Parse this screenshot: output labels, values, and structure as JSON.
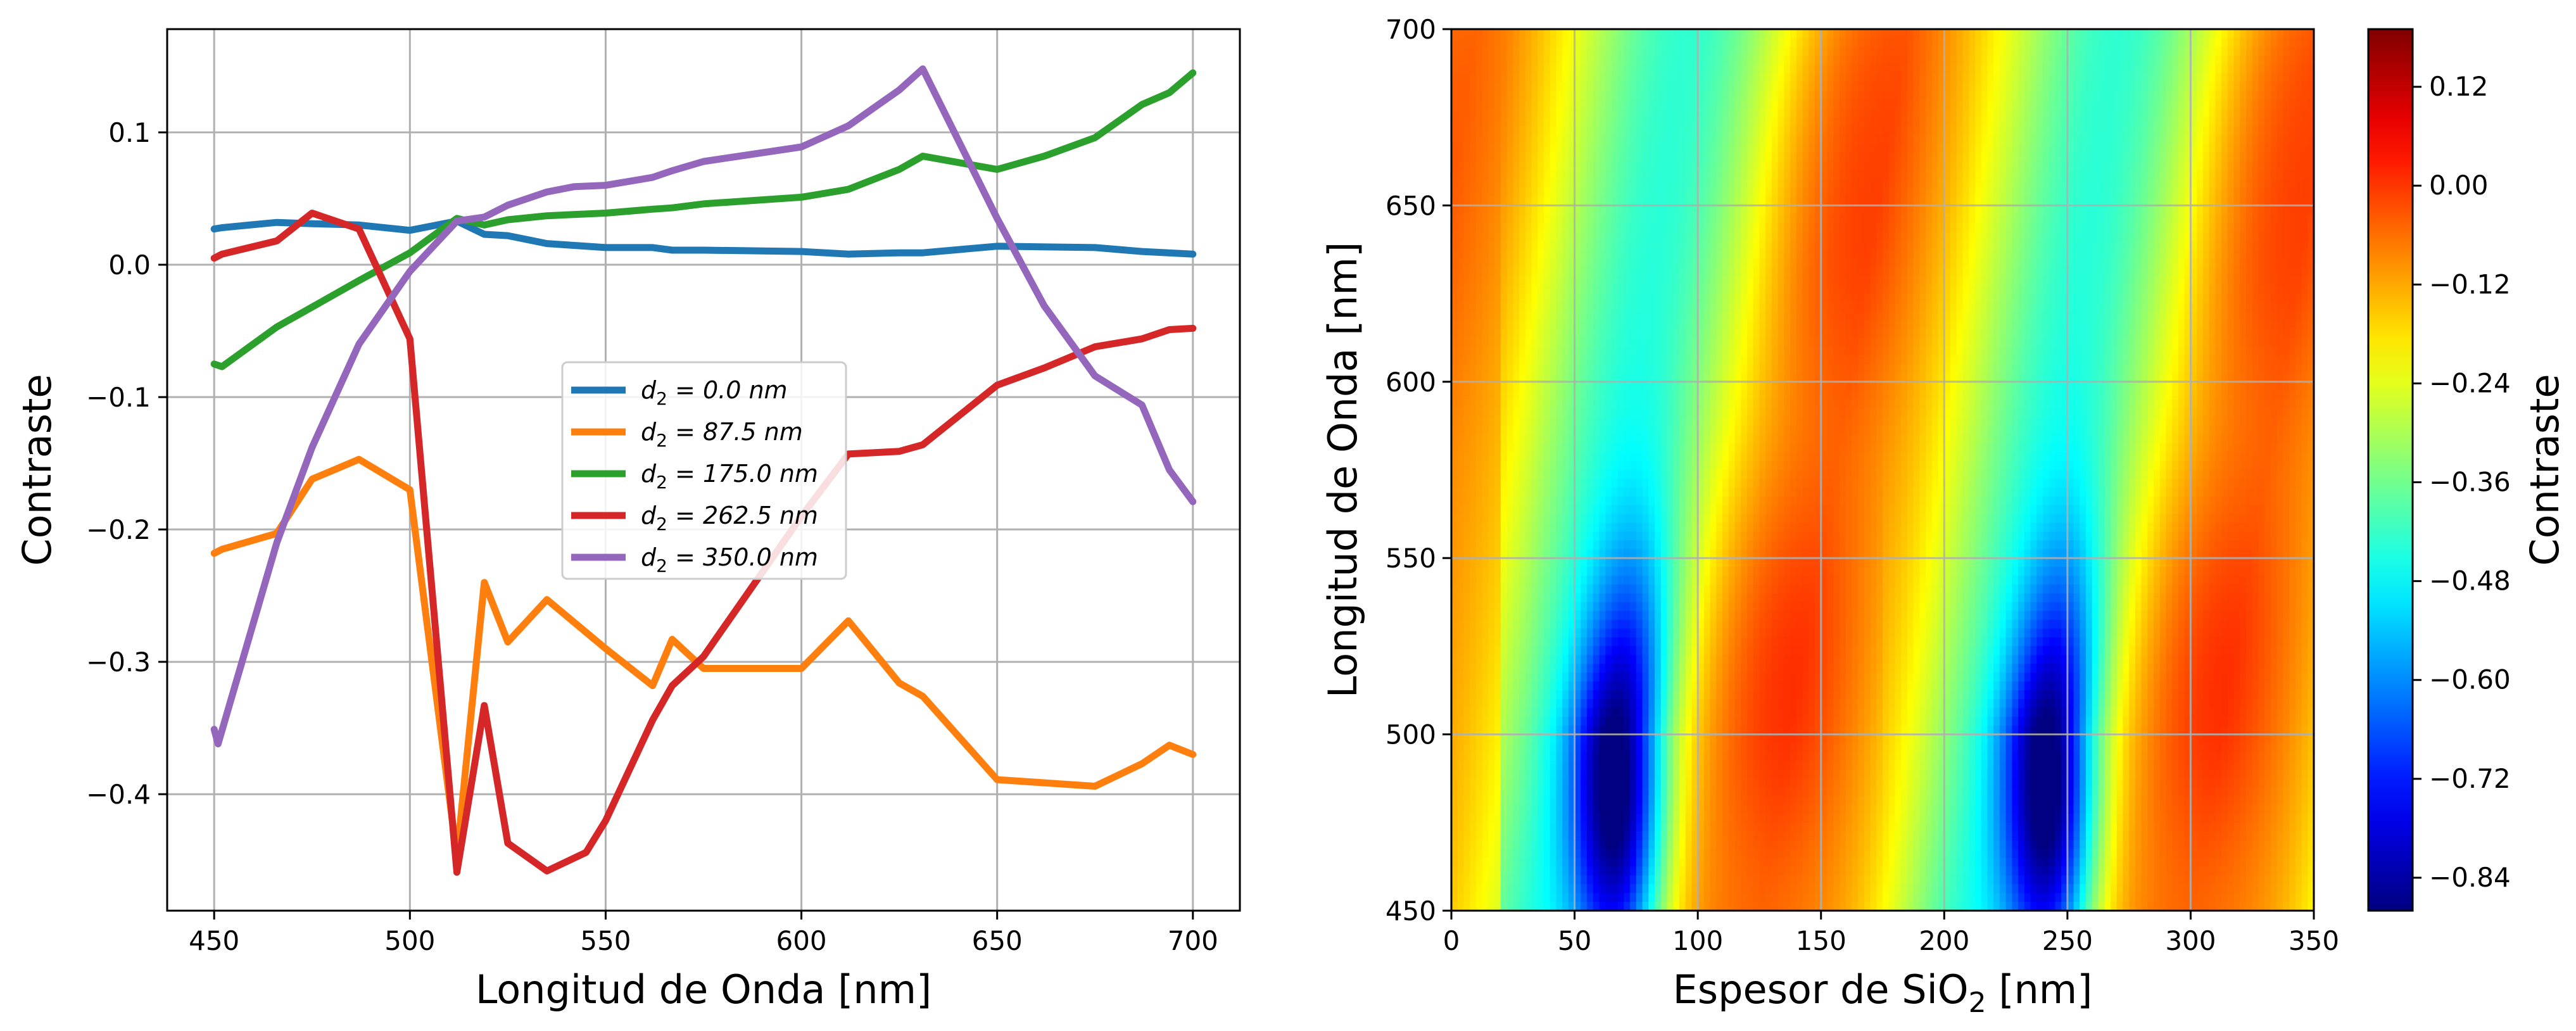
{
  "chart_data": [
    {
      "type": "line",
      "xlabel": "Longitud de Onda [nm]",
      "ylabel": "Contraste",
      "xlim": [
        438,
        712
      ],
      "ylim": [
        -0.488,
        0.178
      ],
      "xticks": [
        450,
        500,
        550,
        600,
        650,
        700
      ],
      "yticks": [
        0.1,
        0.0,
        -0.1,
        -0.2,
        -0.3,
        -0.4
      ],
      "xtick_labels": [
        "450",
        "500",
        "550",
        "600",
        "650",
        "700"
      ],
      "ytick_labels": [
        "0.1",
        "0.0",
        "−0.1",
        "−0.2",
        "−0.3",
        "−0.4"
      ],
      "grid": true,
      "legend_position": "center",
      "series": [
        {
          "name": "d2 = 0.0 nm",
          "label_prefix": "d",
          "label_sub": "2",
          "label_value": " = 0.0 nm",
          "color": "#1f77b4",
          "points": [
            [
              450,
              0.027
            ],
            [
              452,
              0.028
            ],
            [
              466,
              0.032
            ],
            [
              475,
              0.031
            ],
            [
              487,
              0.03
            ],
            [
              500,
              0.026
            ],
            [
              512,
              0.033
            ],
            [
              519,
              0.023
            ],
            [
              525,
              0.022
            ],
            [
              535,
              0.016
            ],
            [
              550,
              0.013
            ],
            [
              562,
              0.013
            ],
            [
              567,
              0.011
            ],
            [
              575,
              0.011
            ],
            [
              600,
              0.01
            ],
            [
              612,
              0.008
            ],
            [
              625,
              0.009
            ],
            [
              631,
              0.009
            ],
            [
              650,
              0.014
            ],
            [
              675,
              0.013
            ],
            [
              687,
              0.01
            ],
            [
              700,
              0.008
            ]
          ]
        },
        {
          "name": "d2 = 87.5 nm",
          "label_prefix": "d",
          "label_sub": "2",
          "label_value": " = 87.5 nm",
          "color": "#ff7f0e",
          "points": [
            [
              450,
              -0.218
            ],
            [
              452,
              -0.215
            ],
            [
              466,
              -0.203
            ],
            [
              475,
              -0.162
            ],
            [
              487,
              -0.147
            ],
            [
              500,
              -0.17
            ],
            [
              512,
              -0.447
            ],
            [
              519,
              -0.24
            ],
            [
              525,
              -0.285
            ],
            [
              535,
              -0.253
            ],
            [
              550,
              -0.29
            ],
            [
              562,
              -0.318
            ],
            [
              567,
              -0.283
            ],
            [
              575,
              -0.305
            ],
            [
              600,
              -0.305
            ],
            [
              612,
              -0.269
            ],
            [
              625,
              -0.316
            ],
            [
              631,
              -0.326
            ],
            [
              650,
              -0.389
            ],
            [
              675,
              -0.394
            ],
            [
              687,
              -0.377
            ],
            [
              694,
              -0.363
            ],
            [
              700,
              -0.37
            ]
          ]
        },
        {
          "name": "d2 = 175.0 nm",
          "label_prefix": "d",
          "label_sub": "2",
          "label_value": " = 175.0 nm",
          "color": "#2ca02c",
          "points": [
            [
              450,
              -0.075
            ],
            [
              452,
              -0.077
            ],
            [
              466,
              -0.047
            ],
            [
              475,
              -0.032
            ],
            [
              487,
              -0.012
            ],
            [
              500,
              0.009
            ],
            [
              512,
              0.035
            ],
            [
              519,
              0.03
            ],
            [
              525,
              0.034
            ],
            [
              535,
              0.037
            ],
            [
              550,
              0.039
            ],
            [
              562,
              0.042
            ],
            [
              567,
              0.043
            ],
            [
              575,
              0.046
            ],
            [
              600,
              0.051
            ],
            [
              612,
              0.057
            ],
            [
              625,
              0.072
            ],
            [
              631,
              0.082
            ],
            [
              650,
              0.072
            ],
            [
              662,
              0.082
            ],
            [
              675,
              0.096
            ],
            [
              687,
              0.121
            ],
            [
              694,
              0.13
            ],
            [
              700,
              0.145
            ]
          ]
        },
        {
          "name": "d2 = 262.5 nm",
          "label_prefix": "d",
          "label_sub": "2",
          "label_value": " = 262.5 nm",
          "color": "#d62728",
          "points": [
            [
              450,
              0.005
            ],
            [
              452,
              0.008
            ],
            [
              466,
              0.018
            ],
            [
              475,
              0.039
            ],
            [
              487,
              0.027
            ],
            [
              500,
              -0.056
            ],
            [
              512,
              -0.459
            ],
            [
              519,
              -0.333
            ],
            [
              525,
              -0.437
            ],
            [
              535,
              -0.458
            ],
            [
              545,
              -0.444
            ],
            [
              550,
              -0.42
            ],
            [
              562,
              -0.344
            ],
            [
              567,
              -0.318
            ],
            [
              575,
              -0.296
            ],
            [
              600,
              -0.19
            ],
            [
              612,
              -0.143
            ],
            [
              625,
              -0.141
            ],
            [
              631,
              -0.136
            ],
            [
              650,
              -0.091
            ],
            [
              662,
              -0.078
            ],
            [
              675,
              -0.062
            ],
            [
              687,
              -0.056
            ],
            [
              694,
              -0.049
            ],
            [
              700,
              -0.048
            ]
          ]
        },
        {
          "name": "d2 = 350.0 nm",
          "label_prefix": "d",
          "label_sub": "2",
          "label_value": " = 350.0 nm",
          "color": "#9467bd",
          "points": [
            [
              450,
              -0.351
            ],
            [
              451,
              -0.362
            ],
            [
              466,
              -0.21
            ],
            [
              475,
              -0.138
            ],
            [
              487,
              -0.06
            ],
            [
              500,
              -0.005
            ],
            [
              512,
              0.033
            ],
            [
              519,
              0.036
            ],
            [
              525,
              0.045
            ],
            [
              535,
              0.055
            ],
            [
              542,
              0.059
            ],
            [
              550,
              0.06
            ],
            [
              562,
              0.066
            ],
            [
              567,
              0.071
            ],
            [
              575,
              0.078
            ],
            [
              600,
              0.089
            ],
            [
              612,
              0.105
            ],
            [
              625,
              0.132
            ],
            [
              631,
              0.148
            ],
            [
              650,
              0.035
            ],
            [
              662,
              -0.031
            ],
            [
              675,
              -0.084
            ],
            [
              687,
              -0.106
            ],
            [
              694,
              -0.155
            ],
            [
              700,
              -0.179
            ]
          ]
        }
      ]
    },
    {
      "type": "heatmap",
      "xlabel_prefix": "Espesor de SiO",
      "xlabel_sub": "2",
      "xlabel_suffix": " [nm]",
      "ylabel": "Longitud de Onda [nm]",
      "colorbar_label": "Contraste",
      "colormap": "jet",
      "xlim": [
        0,
        350
      ],
      "ylim": [
        450,
        700
      ],
      "xticks": [
        0,
        50,
        100,
        150,
        200,
        250,
        300,
        350
      ],
      "yticks": [
        450,
        500,
        550,
        600,
        650,
        700
      ],
      "xtick_labels": [
        "0",
        "50",
        "100",
        "150",
        "200",
        "250",
        "300",
        "350"
      ],
      "ytick_labels": [
        "450",
        "500",
        "550",
        "600",
        "650",
        "700"
      ],
      "grid": true,
      "colorbar_range": [
        -0.88,
        0.19
      ],
      "colorbar_ticks": [
        0.12,
        0.0,
        -0.12,
        -0.24,
        -0.36,
        -0.48,
        -0.6,
        -0.72,
        -0.84
      ],
      "colorbar_tick_labels": [
        "0.12",
        "0.00",
        "−0.12",
        "−0.24",
        "−0.36",
        "−0.48",
        "−0.60",
        "−0.72",
        "−0.84"
      ],
      "period_nm": 175,
      "description_values": {
        "minimum_thickness_nm": [
          70,
          245
        ],
        "minimum_wavelength_range_nm": [
          450,
          535
        ],
        "minimum_value": -0.88,
        "maximum_thickness_nm": [
          150,
          325
        ],
        "maximum_value": 0.19
      }
    }
  ]
}
